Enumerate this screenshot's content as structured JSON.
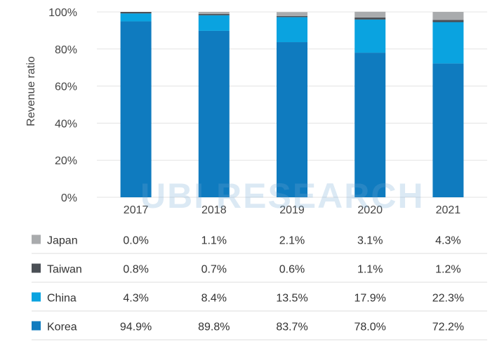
{
  "chart_data": {
    "type": "bar",
    "stacked": true,
    "categories": [
      "2017",
      "2018",
      "2019",
      "2020",
      "2021"
    ],
    "ylabel": "Revenue ratio",
    "ylim": [
      0,
      100
    ],
    "yticks": [
      "0%",
      "20%",
      "40%",
      "60%",
      "80%",
      "100%"
    ],
    "grid": true,
    "legend_placement": "data table below chart",
    "series": [
      {
        "name": "Korea",
        "color": "#0f7bbf",
        "values": [
          94.9,
          89.8,
          83.7,
          78.0,
          72.2
        ],
        "labels": [
          "94.9%",
          "89.8%",
          "83.7%",
          "78.0%",
          "72.2%"
        ]
      },
      {
        "name": "China",
        "color": "#0aa3e0",
        "values": [
          4.3,
          8.4,
          13.5,
          17.9,
          22.3
        ],
        "labels": [
          "4.3%",
          "8.4%",
          "13.5%",
          "17.9%",
          "22.3%"
        ]
      },
      {
        "name": "Taiwan",
        "color": "#4a4f55",
        "values": [
          0.8,
          0.7,
          0.6,
          1.1,
          1.2
        ],
        "labels": [
          "0.8%",
          "0.7%",
          "0.6%",
          "1.1%",
          "1.2%"
        ]
      },
      {
        "name": "Japan",
        "color": "#a9abad",
        "values": [
          0.0,
          1.1,
          2.1,
          3.1,
          4.3
        ],
        "labels": [
          "0.0%",
          "1.1%",
          "2.1%",
          "3.1%",
          "4.3%"
        ]
      }
    ],
    "table_row_order": [
      "Japan",
      "Taiwan",
      "China",
      "Korea"
    ]
  },
  "watermark": {
    "text": "UBI RESEARCH"
  }
}
